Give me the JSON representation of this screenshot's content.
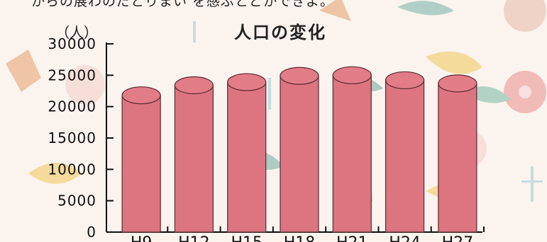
{
  "header_text": "からの展わのだとりまい を感ぶとどかできよ。",
  "chart_data": {
    "type": "bar",
    "title": "人口の変化",
    "ylabel": "（人）",
    "xlabel": "",
    "categories": [
      "H9",
      "H12",
      "H15",
      "H18",
      "H21",
      "H24",
      "H27"
    ],
    "values": [
      21800,
      23400,
      23900,
      24900,
      25000,
      24200,
      23700
    ],
    "ylim": [
      0,
      30000
    ],
    "yticks": [
      0,
      5000,
      10000,
      15000,
      20000,
      25000,
      30000
    ],
    "ytick_labels": [
      "0",
      "5000",
      "10000",
      "15000",
      "20000",
      "25000",
      "30000"
    ],
    "bar_color": "#dd7580",
    "bar_outline": "#5a2a2f",
    "grid": false,
    "legend": "none"
  }
}
